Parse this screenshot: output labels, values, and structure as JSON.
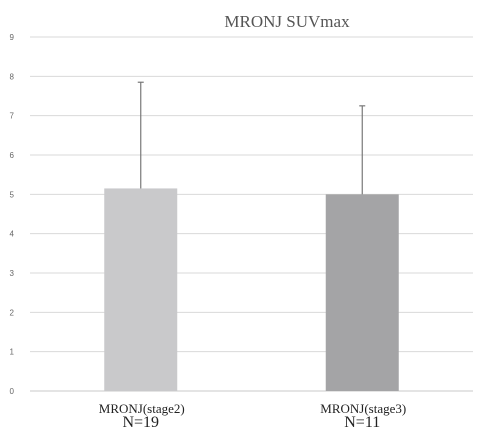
{
  "chart_data": {
    "type": "bar",
    "title": "MRONJ SUVmax",
    "xlabel": "",
    "ylabel": "",
    "ylim": [
      0,
      9
    ],
    "yticks": [
      "0",
      "1",
      "2",
      "3",
      "4",
      "5",
      "6",
      "7",
      "8",
      "9"
    ],
    "grid": true,
    "legend": "none",
    "categories": [
      "MRONJ(stage2)",
      "MRONJ(stage3)"
    ],
    "sample_sizes": [
      "N=19",
      "N=11"
    ],
    "values": [
      5.15,
      5.0
    ],
    "error_upper": [
      7.85,
      7.25
    ],
    "colors": [
      "#c9c9cb",
      "#a4a4a6"
    ],
    "error_bar_color": "#777777",
    "grid_color": "#d9d9d9"
  }
}
